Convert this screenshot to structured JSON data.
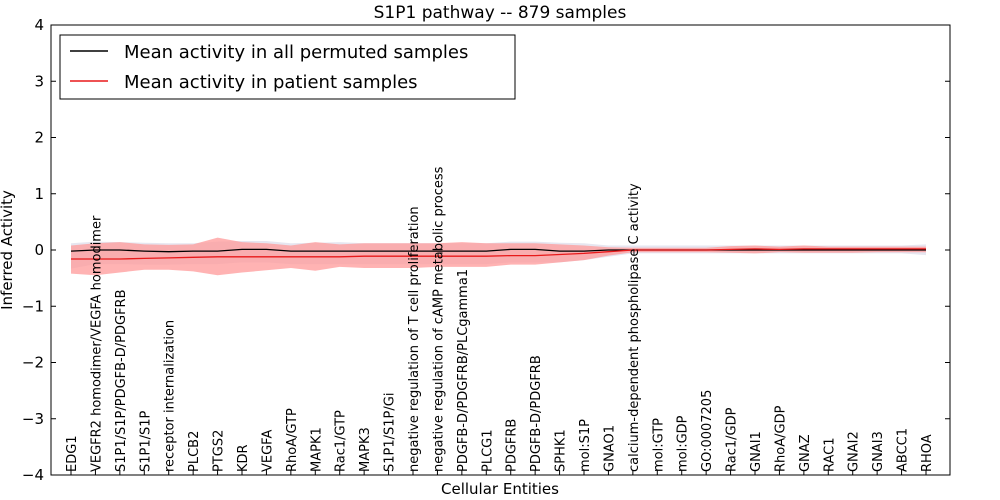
{
  "chart_data": {
    "type": "line",
    "title": "S1P1 pathway -- 879 samples",
    "xlabel": "Cellular Entities",
    "ylabel": "Inferred Activity",
    "ylim": [
      -4,
      4
    ],
    "yticks": [
      "4",
      "3",
      "2",
      "1",
      "0",
      "−1",
      "−2",
      "−3",
      "−4"
    ],
    "legend_position": "top-left",
    "categories": [
      "EDG1",
      "VEGFR2 homodimer/VEGFA homodimer",
      "S1P1/S1P/PDGFB-D/PDGFRB",
      "S1P1/S1P",
      "receptor internalization",
      "PLCB2",
      "PTGS2",
      "KDR",
      "VEGFA",
      "RhoA/GTP",
      "MAPK1",
      "Rac1/GTP",
      "MAPK3",
      "S1P1/S1P/Gi",
      "negative regulation of T cell proliferation",
      "negative regulation of cAMP metabolic process",
      "PDGFB-D/PDGFRB/PLCgamma1",
      "PLCG1",
      "PDGFRB",
      "PDGFB-D/PDGFRB",
      "SPHK1",
      "mol:S1P",
      "GNAO1",
      "calcium-dependent phospholipase C activity",
      "mol:GTP",
      "mol:GDP",
      "GO:0007205",
      "Rac1/GDP",
      "GNAI1",
      "RhoA/GDP",
      "GNAZ",
      "RAC1",
      "GNAI2",
      "GNAI3",
      "ABCC1",
      "RHOA"
    ],
    "series": [
      {
        "name": "Mean activity in all permuted samples",
        "color": "#000000",
        "band_color": "#c8c8de",
        "values": [
          -0.02,
          0,
          0,
          -0.02,
          -0.03,
          -0.02,
          -0.02,
          0.01,
          0.01,
          -0.02,
          -0.02,
          -0.02,
          -0.02,
          -0.02,
          -0.02,
          -0.02,
          -0.02,
          -0.02,
          0.01,
          0.01,
          -0.02,
          -0.02,
          0,
          0,
          0,
          0,
          0,
          0,
          0,
          0,
          0,
          0,
          0,
          0,
          0,
          0
        ],
        "band_low": [
          -0.33,
          -0.25,
          -0.25,
          -0.26,
          -0.26,
          -0.25,
          -0.25,
          -0.22,
          -0.22,
          -0.25,
          -0.25,
          -0.25,
          -0.25,
          -0.25,
          -0.25,
          -0.25,
          -0.25,
          -0.25,
          -0.22,
          -0.22,
          -0.22,
          -0.18,
          -0.12,
          -0.06,
          -0.06,
          -0.06,
          -0.06,
          -0.06,
          -0.06,
          -0.06,
          -0.06,
          -0.06,
          -0.06,
          -0.06,
          -0.06,
          -0.09
        ],
        "band_high": [
          0.12,
          0.15,
          0.14,
          0.13,
          0.12,
          0.12,
          0.15,
          0.16,
          0.16,
          0.12,
          0.13,
          0.14,
          0.12,
          0.12,
          0.12,
          0.12,
          0.12,
          0.12,
          0.15,
          0.15,
          0.13,
          0.12,
          0.08,
          0.08,
          0.08,
          0.08,
          0.08,
          0.08,
          0.08,
          0.08,
          0.08,
          0.08,
          0.08,
          0.08,
          0.08,
          0.1
        ]
      },
      {
        "name": "Mean activity in patient samples",
        "color": "#e8191a",
        "band_color": "#ff9a9a",
        "values": [
          -0.16,
          -0.16,
          -0.16,
          -0.15,
          -0.14,
          -0.13,
          -0.12,
          -0.12,
          -0.12,
          -0.12,
          -0.12,
          -0.12,
          -0.11,
          -0.11,
          -0.11,
          -0.11,
          -0.11,
          -0.11,
          -0.1,
          -0.1,
          -0.08,
          -0.06,
          -0.03,
          0,
          0,
          0,
          0,
          0.01,
          0.02,
          0.01,
          0.02,
          0.02,
          0.02,
          0.02,
          0.02,
          0.02
        ],
        "band_low": [
          -0.42,
          -0.45,
          -0.4,
          -0.35,
          -0.35,
          -0.38,
          -0.45,
          -0.4,
          -0.36,
          -0.32,
          -0.37,
          -0.3,
          -0.32,
          -0.32,
          -0.32,
          -0.3,
          -0.3,
          -0.3,
          -0.26,
          -0.26,
          -0.22,
          -0.18,
          -0.1,
          -0.04,
          -0.04,
          -0.04,
          -0.04,
          -0.05,
          -0.06,
          -0.04,
          -0.05,
          -0.05,
          -0.05,
          -0.04,
          -0.04,
          -0.04
        ],
        "band_high": [
          0.08,
          0.12,
          0.14,
          0.1,
          0.09,
          0.1,
          0.22,
          0.14,
          0.12,
          0.08,
          0.14,
          0.1,
          0.12,
          0.12,
          0.12,
          0.12,
          0.14,
          0.12,
          0.12,
          0.12,
          0.1,
          0.08,
          0.05,
          0.04,
          0.04,
          0.04,
          0.04,
          0.07,
          0.08,
          0.06,
          0.08,
          0.06,
          0.06,
          0.06,
          0.06,
          0.06
        ]
      }
    ]
  }
}
